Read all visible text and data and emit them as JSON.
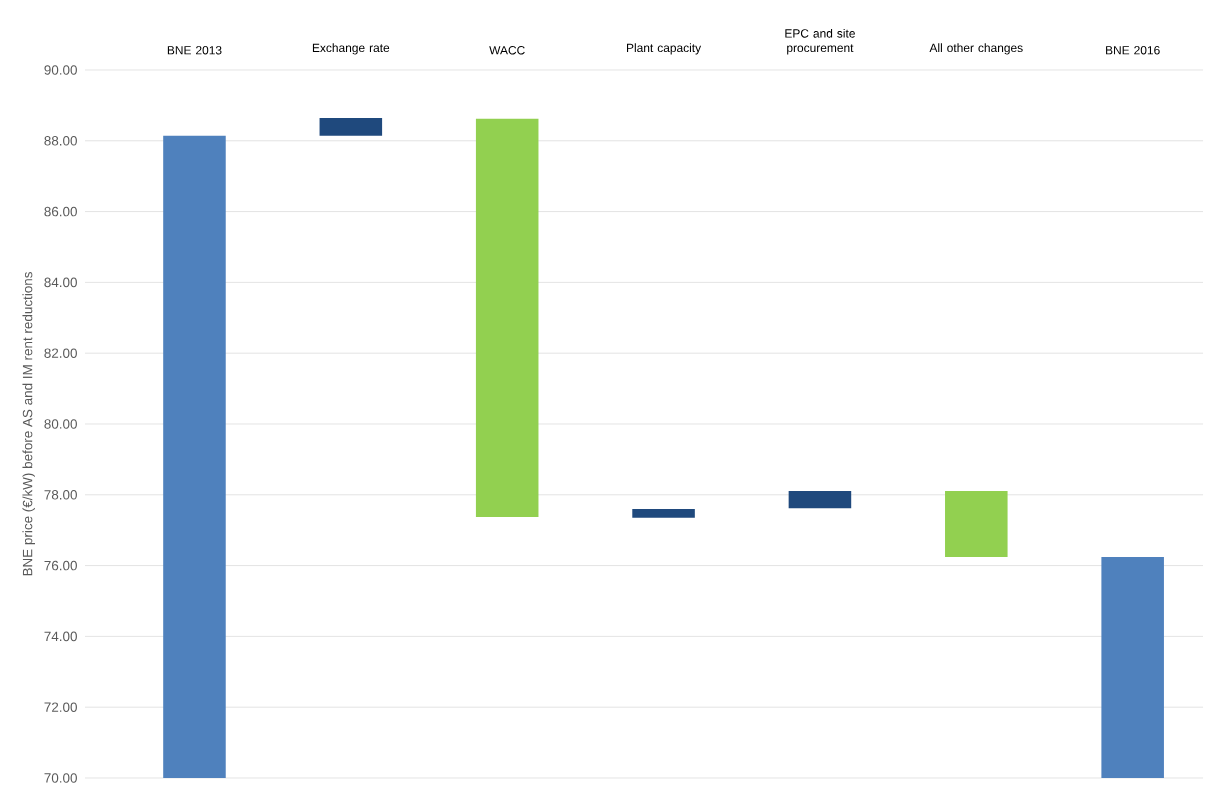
{
  "chart_data": {
    "type": "bar",
    "ylabel": "BNE price (€/kW) before AS and IM rent reductions",
    "categories": [
      "BNE 2013",
      "Exchange rate",
      "WACC",
      "Plant capacity",
      "EPC and site procurement",
      "All other changes",
      "BNE 2016"
    ],
    "base": [
      70,
      88.14,
      88.62,
      77.35,
      77.62,
      78.11,
      70
    ],
    "values": [
      18.14,
      0.5,
      -11.25,
      0.25,
      0.49,
      -1.87,
      6.24
    ],
    "colors": [
      "#4f81bd",
      "#1f497d",
      "#92d050",
      "#1f497d",
      "#1f497d",
      "#92d050",
      "#4f81bd"
    ],
    "ylim": [
      70,
      90
    ],
    "yticks": [
      {
        "value": 70,
        "label": "70.00"
      },
      {
        "value": 72,
        "label": "72.00"
      },
      {
        "value": 74,
        "label": "74.00"
      },
      {
        "value": 76,
        "label": "76.00"
      },
      {
        "value": 78,
        "label": "78.00"
      },
      {
        "value": 80,
        "label": "80.00"
      },
      {
        "value": 82,
        "label": "82.00"
      },
      {
        "value": 84,
        "label": "84.00"
      },
      {
        "value": 86,
        "label": "86.00"
      },
      {
        "value": 88,
        "label": "88.00"
      },
      {
        "value": 90,
        "label": "90.00"
      }
    ],
    "grid": "y"
  }
}
